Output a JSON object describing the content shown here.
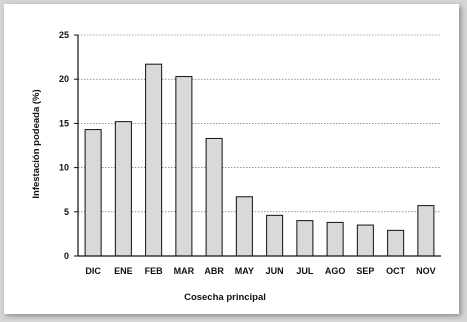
{
  "chart_data": {
    "type": "bar",
    "title": "",
    "xlabel": "Cosecha  principal",
    "ylabel": "Infestación podeada (%)",
    "categories": [
      "DIC",
      "ENE",
      "FEB",
      "MAR",
      "ABR",
      "MAY",
      "JUN",
      "JUL",
      "AGO",
      "SEP",
      "OCT",
      "NOV"
    ],
    "values": [
      14.3,
      15.2,
      21.7,
      20.3,
      13.3,
      6.7,
      4.6,
      4.0,
      3.8,
      3.5,
      2.9,
      5.7
    ],
    "ylim": [
      0,
      25
    ],
    "yticks": [
      "0",
      "5",
      "10",
      "15",
      "20",
      "25"
    ],
    "grid": true,
    "colors": {
      "bar_fill": "#d9d9d9",
      "bar_stroke": "#111111",
      "grid": "#555555"
    }
  }
}
